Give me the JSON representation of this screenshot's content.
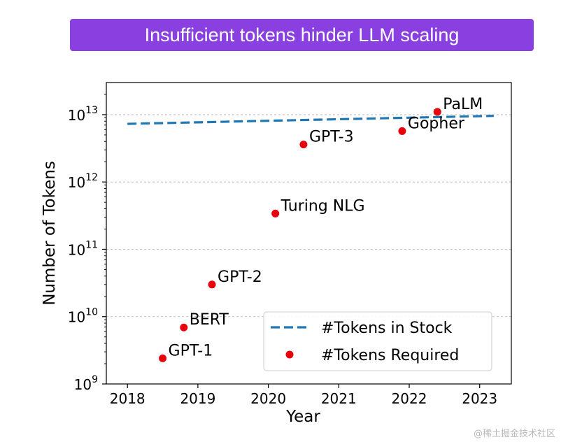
{
  "banner": {
    "title": "Insufficient tokens hinder LLM scaling"
  },
  "chart_data": {
    "type": "scatter",
    "title": "",
    "xlabel": "Year",
    "ylabel": "Number of Tokens",
    "xlim": [
      2017.7,
      2023.45
    ],
    "ylim": [
      1000000000.0,
      30000000000000.0
    ],
    "yscale": "log",
    "x_ticks": [
      2018,
      2019,
      2020,
      2021,
      2022,
      2023
    ],
    "y_ticks": [
      {
        "value": 1000000000.0,
        "base": "10",
        "exp": "9"
      },
      {
        "value": 10000000000.0,
        "base": "10",
        "exp": "10"
      },
      {
        "value": 100000000000.0,
        "base": "10",
        "exp": "11"
      },
      {
        "value": 1000000000000.0,
        "base": "10",
        "exp": "12"
      },
      {
        "value": 10000000000000.0,
        "base": "10",
        "exp": "13"
      }
    ],
    "grid": "horizontal-dashed",
    "legend_position": "lower-right",
    "series": [
      {
        "name": "#Tokens in Stock",
        "type": "line",
        "style": "dashed",
        "color": "#1F77B4",
        "x": [
          2018.0,
          2023.2
        ],
        "y": [
          7300000000000.0,
          9600000000000.0
        ]
      },
      {
        "name": "#Tokens Required",
        "type": "scatter",
        "color": "#E8000B",
        "points": [
          {
            "label": "GPT-1",
            "x": 2018.5,
            "y": 2400000000.0
          },
          {
            "label": "BERT",
            "x": 2018.8,
            "y": 6900000000.0
          },
          {
            "label": "GPT-2",
            "x": 2019.2,
            "y": 30000000000.0
          },
          {
            "label": "Turing NLG",
            "x": 2020.1,
            "y": 340000000000.0
          },
          {
            "label": "GPT-3",
            "x": 2020.5,
            "y": 3600000000000.0
          },
          {
            "label": "Gopher",
            "x": 2021.9,
            "y": 5700000000000.0
          },
          {
            "label": "PaLM",
            "x": 2022.4,
            "y": 11000000000000.0
          }
        ]
      }
    ]
  },
  "watermark": "@稀土掘金技术社区"
}
